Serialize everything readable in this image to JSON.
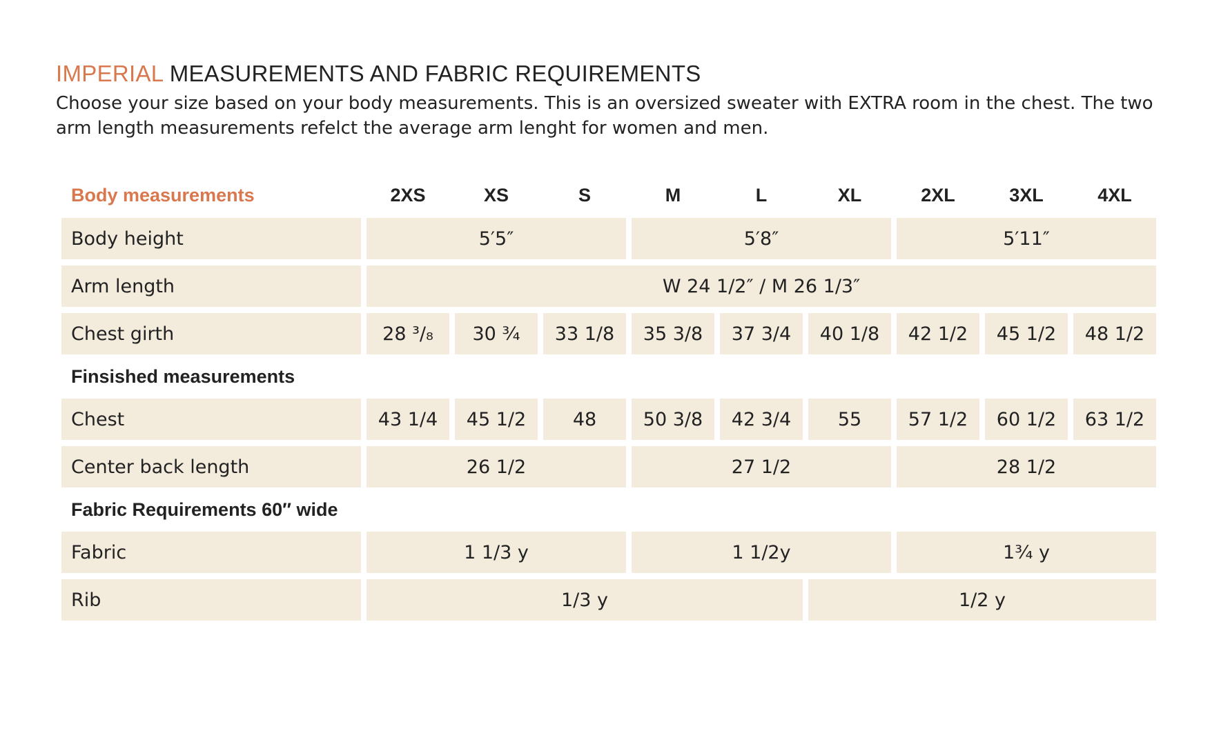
{
  "header": {
    "title_highlight": "IMPERIAL",
    "title_rest": "MEASUREMENTS AND FABRIC REQUIREMENTS",
    "description": "Choose your size based on your body measurements. This is an oversized sweater with EXTRA room in the chest. The two arm length measurements refelct the average arm lenght for women and men."
  },
  "table": {
    "section_header": "Body measurements",
    "sizes": [
      "2XS",
      "XS",
      "S",
      "M",
      "L",
      "XL",
      "2XL",
      "3XL",
      "4XL"
    ],
    "rows": [
      {
        "label": "Body height",
        "cells": [
          "5′5″",
          "5′8″",
          "5′11″"
        ]
      },
      {
        "label": "Arm length",
        "cells": [
          "W 24 1/2″  /  M 26 1/3″"
        ]
      },
      {
        "label": "Chest girth",
        "cells": [
          "28 ³/₈",
          "30 ¾",
          "33 1/8",
          "35 3/8",
          "37 3/4",
          "40 1/8",
          "42 1/2",
          "45 1/2",
          "48 1/2"
        ]
      },
      {
        "section": "Finsished  measurements"
      },
      {
        "label": "Chest",
        "cells": [
          "43 1/4",
          "45 1/2",
          "48",
          "50 3/8",
          "42 3/4",
          "55",
          "57 1/2",
          "60 1/2",
          "63 1/2"
        ]
      },
      {
        "label": "Center back length",
        "cells": [
          "26 1/2",
          "27 1/2",
          "28 1/2"
        ]
      },
      {
        "section": "Fabric Requirements 60″ wide"
      },
      {
        "label": "Fabric",
        "cells": [
          "1 1/3  y",
          "1 1/2y",
          "1¾ y"
        ]
      },
      {
        "label": "Rib",
        "cells": [
          "1/3 y",
          "1/2 y"
        ]
      }
    ]
  }
}
